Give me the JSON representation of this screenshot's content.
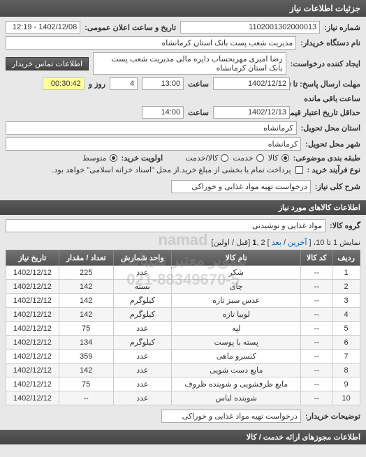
{
  "header": "جزئیات اطلاعات نیاز",
  "fields": {
    "number_label": "شماره نیاز:",
    "number_value": "1102001302000013",
    "announce_label": "تاریخ و ساعت اعلان عمومی:",
    "announce_value": "1402/12/08 - 12:19",
    "buyer_label": "نام دستگاه خریدار:",
    "buyer_value": "مدیریت شعب پست بانک استان کرمانشاه",
    "creator_label": "ایجاد کننده درخواست:",
    "creator_value": "رضا امیری مهربحساب دایره مالی مدیریت شعب پست بانک استان کرمانشاه",
    "contact_btn": "اطلاعات تماس خریدار",
    "deadline_send_label": "مهلت ارسال پاسخ: تا تاریخ:",
    "deadline_send_date": "1402/12/12",
    "time_label": "ساعت",
    "deadline_send_time": "13:00",
    "days_remain": "4",
    "days_label": "روز و",
    "timer": "00:30:42",
    "remain_label": "ساعت باقی مانده",
    "deadline_valid_label": "حداقل تاریخ اعتبار قیمت: تا تاریخ:",
    "deadline_valid_date": "1402/12/13",
    "deadline_valid_time": "14:00",
    "province_label": "استان محل تحویل:",
    "province_value": "کرمانشاه",
    "city_label": "شهر محل تحویل:",
    "city_value": "کرمانشاه",
    "class_label": "طبقه بندی موضوعی:",
    "class_goods": "کالا",
    "class_service": "خدمت",
    "class_both": "کالا/خدمت",
    "priority_label": "اولویت خرید:",
    "priority_mid": "متوسط",
    "process_label": "نوع فرآیند خرید :",
    "process_value": "پرداخت تمام یا بخشی از مبلغ خرید.از محل \"اسناد خزانه اسلامی\" خواهد بود.",
    "desc_label": "شرح کلی نیاز:",
    "desc_value": "درخواست تهیه مواد غذایی و خوراکی"
  },
  "goods_section": "اطلاعات کالاهای مورد نیاز",
  "group_label": "گروه کالا:",
  "group_value": "مواد غذایی و نوشیدنی",
  "pager": {
    "prefix": "نمایش 1 تا 10، [ ",
    "last": "آخرین",
    "sep1": " / ",
    "next": "بعد",
    "mid": " ] 2 ,",
    "page1": "1",
    "suffix": " [قبل / اولین]"
  },
  "table": {
    "columns": [
      "ردیف",
      "کد کالا",
      "نام کالا",
      "واحد شمارش",
      "تعداد / مقدار",
      "تاریخ نیاز"
    ],
    "rows": [
      [
        "1",
        "--",
        "شکر",
        "عدد",
        "225",
        "1402/12/12"
      ],
      [
        "2",
        "--",
        "چای",
        "بسته",
        "142",
        "1402/12/12"
      ],
      [
        "3",
        "--",
        "عدس سبز تازه",
        "کیلوگرم",
        "142",
        "1402/12/12"
      ],
      [
        "4",
        "--",
        "لوبیا تازه",
        "کیلوگرم",
        "142",
        "1402/12/12"
      ],
      [
        "5",
        "--",
        "لپه",
        "عدد",
        "75",
        "1402/12/12"
      ],
      [
        "6",
        "--",
        "پسته با پوست",
        "کیلوگرم",
        "134",
        "1402/12/12"
      ],
      [
        "7",
        "--",
        "کنسرو ماهی",
        "عدد",
        "359",
        "1402/12/12"
      ],
      [
        "8",
        "--",
        "مایع دست شویی",
        "عدد",
        "142",
        "1402/12/12"
      ],
      [
        "9",
        "--",
        "مایع ظرفشویی و شوینده ظروف",
        "عدد",
        "75",
        "1402/12/12"
      ],
      [
        "10",
        "--",
        "شوینده لباس",
        "عدد",
        "--",
        "1402/12/12"
      ]
    ]
  },
  "buyer_desc_label": "توضیحات خریدار:",
  "buyer_desc_value": "درخواست تهیه مواد غذایی و خوراکی",
  "auth_section": "اطلاعات مجوزهای ارائه خدمت / کالا",
  "watermark1": "namad",
  "watermark2": "تصویر معتبر نمیباشد",
  "watermark3": "021-88349670-5"
}
